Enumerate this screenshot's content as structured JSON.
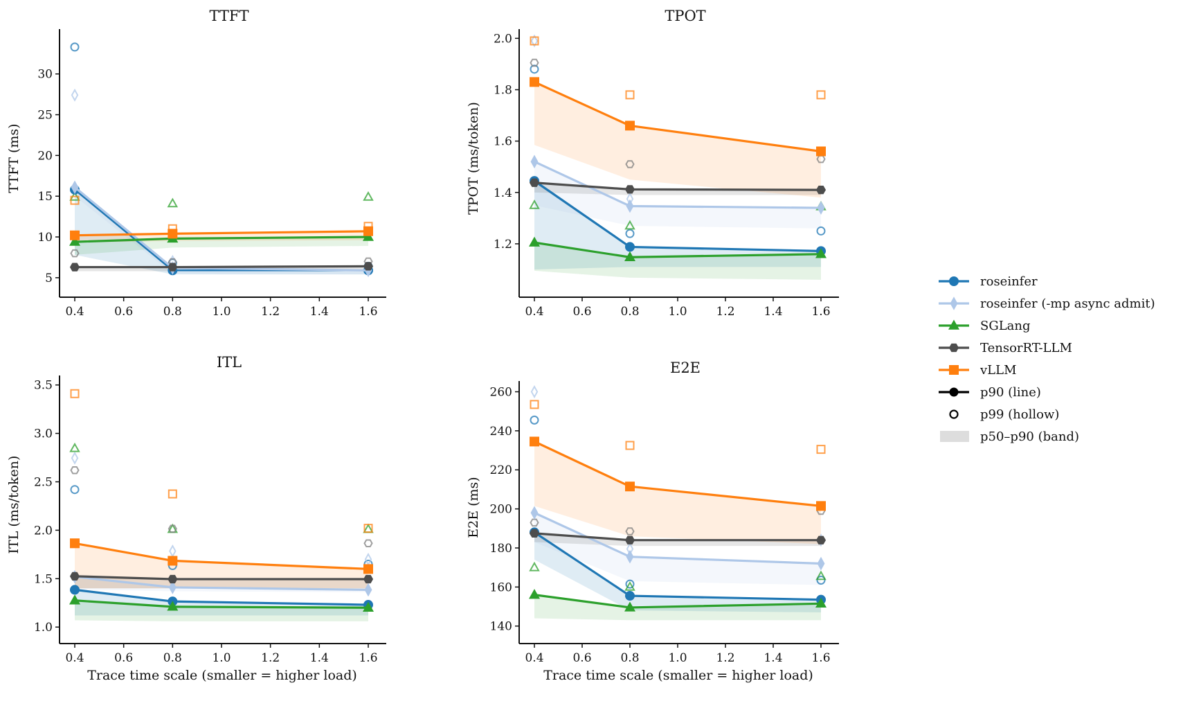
{
  "chart_data": {
    "type": "line",
    "x": [
      0.4,
      0.8,
      1.6
    ],
    "xlabel": "Trace time scale (smaller = higher load)",
    "xticks": [
      "0.4",
      "0.6",
      "0.8",
      "1.0",
      "1.2",
      "1.4",
      "1.6"
    ],
    "xlim": [
      0.34,
      1.67
    ],
    "grid": false,
    "legend_position": "right",
    "series_style": [
      {
        "name": "roseinfer",
        "color": "#1f77b4",
        "marker": "circle"
      },
      {
        "name": "roseinfer (-mp async admit)",
        "color": "#aec7e8",
        "marker": "diamond"
      },
      {
        "name": "SGLang",
        "color": "#2ca02c",
        "marker": "triangle"
      },
      {
        "name": "TensorRT-LLM",
        "color": "#4d4d4d",
        "marker": "hexagon"
      },
      {
        "name": "vLLM",
        "color": "#ff7f0e",
        "marker": "square"
      }
    ],
    "legend": [
      "roseinfer",
      "roseinfer (-mp async admit)",
      "SGLang",
      "TensorRT-LLM",
      "vLLM",
      "p90 (line)",
      "p99 (hollow)",
      "p50–p90 (band)"
    ],
    "panels": [
      {
        "title": "TTFT",
        "ylabel": "TTFT (ms)",
        "ylim": [
          3.8,
          35.5
        ],
        "yticks": [
          "5",
          "10",
          "15",
          "20",
          "25",
          "30"
        ],
        "ytick_values": [
          5,
          10,
          15,
          20,
          25,
          30
        ],
        "show_xticks": true,
        "show_xlabel": false,
        "series": [
          {
            "name": "roseinfer",
            "p90": [
              15.8,
              5.9,
              5.9
            ],
            "p50": [
              7.8,
              5.4,
              5.4
            ],
            "p99": [
              33.3,
              6.8,
              6.4
            ]
          },
          {
            "name": "roseinfer (-mp async admit)",
            "p90": [
              16.1,
              6.2,
              5.9
            ],
            "p50": [
              15.0,
              5.5,
              5.4
            ],
            "p99": [
              27.4,
              7.0,
              6.2
            ]
          },
          {
            "name": "SGLang",
            "p90": [
              9.4,
              9.8,
              10.0
            ],
            "p50": [
              7.8,
              8.7,
              8.9
            ],
            "p99": [
              14.9,
              14.1,
              14.9
            ]
          },
          {
            "name": "TensorRT-LLM",
            "p90": [
              6.3,
              6.3,
              6.4
            ],
            "p50": [
              5.8,
              5.8,
              5.8
            ],
            "p99": [
              8.0,
              6.9,
              7.0
            ]
          },
          {
            "name": "vLLM",
            "p90": [
              10.2,
              10.4,
              10.7
            ],
            "p50": [
              9.3,
              9.5,
              9.6
            ],
            "p99": [
              14.5,
              11.0,
              11.3
            ]
          }
        ]
      },
      {
        "title": "TPOT",
        "ylabel": "TPOT (ms/token)",
        "ylim": [
          1.03,
          2.036
        ],
        "yticks": [
          "1.2",
          "1.4",
          "1.6",
          "1.8",
          "2.0"
        ],
        "ytick_values": [
          1.2,
          1.4,
          1.6,
          1.8,
          2.0
        ],
        "show_xticks": true,
        "show_xlabel": false,
        "series": [
          {
            "name": "roseinfer",
            "p90": [
              1.445,
              1.188,
              1.172
            ],
            "p50": [
              1.1,
              1.11,
              1.11
            ],
            "p99": [
              1.88,
              1.24,
              1.25
            ]
          },
          {
            "name": "roseinfer (-mp async admit)",
            "p90": [
              1.52,
              1.347,
              1.34
            ],
            "p50": [
              1.35,
              1.27,
              1.26
            ],
            "p99": [
              1.99,
              1.375,
              1.34
            ]
          },
          {
            "name": "SGLang",
            "p90": [
              1.205,
              1.148,
              1.16
            ],
            "p50": [
              1.095,
              1.068,
              1.06
            ],
            "p99": [
              1.35,
              1.27,
              1.345
            ]
          },
          {
            "name": "TensorRT-LLM",
            "p90": [
              1.438,
              1.412,
              1.41
            ],
            "p50": [
              1.4,
              1.39,
              1.39
            ],
            "p99": [
              1.905,
              1.51,
              1.53
            ]
          },
          {
            "name": "vLLM",
            "p90": [
              1.83,
              1.66,
              1.56
            ],
            "p50": [
              1.585,
              1.45,
              1.38
            ],
            "p99": [
              1.99,
              1.78,
              1.78
            ]
          }
        ]
      },
      {
        "title": "ITL",
        "ylabel": "ITL (ms/token)",
        "ylim": [
          0.93,
          3.598
        ],
        "yticks": [
          "1.0",
          "1.5",
          "2.0",
          "2.5",
          "3.0",
          "3.5"
        ],
        "ytick_values": [
          1.0,
          1.5,
          2.0,
          2.5,
          3.0,
          3.5
        ],
        "show_xticks": true,
        "show_xlabel": true,
        "series": [
          {
            "name": "roseinfer",
            "p90": [
              1.385,
              1.265,
              1.23
            ],
            "p50": [
              1.12,
              1.12,
              1.12
            ],
            "p99": [
              2.42,
              1.635,
              1.65
            ]
          },
          {
            "name": "roseinfer (-mp async admit)",
            "p90": [
              1.52,
              1.41,
              1.385
            ],
            "p50": [
              1.39,
              1.37,
              1.36
            ],
            "p99": [
              2.745,
              1.785,
              1.7
            ]
          },
          {
            "name": "SGLang",
            "p90": [
              1.275,
              1.21,
              1.2
            ],
            "p50": [
              1.07,
              1.06,
              1.06
            ],
            "p99": [
              2.845,
              2.01,
              2.01
            ]
          },
          {
            "name": "TensorRT-LLM",
            "p90": [
              1.525,
              1.495,
              1.495
            ],
            "p50": [
              1.4,
              1.4,
              1.4
            ],
            "p99": [
              2.62,
              2.015,
              1.865
            ]
          },
          {
            "name": "vLLM",
            "p90": [
              1.865,
              1.685,
              1.6
            ],
            "p50": [
              1.4,
              1.4,
              1.4
            ],
            "p99": [
              3.41,
              2.375,
              2.02
            ]
          }
        ]
      },
      {
        "title": "E2E",
        "ylabel": "E2E (ms)",
        "ylim": [
          136,
          265.5
        ],
        "yticks": [
          "140",
          "160",
          "180",
          "200",
          "220",
          "240",
          "260"
        ],
        "ytick_values": [
          140,
          160,
          180,
          200,
          220,
          240,
          260
        ],
        "show_xticks": true,
        "show_xlabel": true,
        "series": [
          {
            "name": "roseinfer",
            "p90": [
              188,
              155.5,
              153.5
            ],
            "p50": [
              174,
              148,
              147
            ],
            "p99": [
              245.5,
              161.5,
              163.5
            ]
          },
          {
            "name": "roseinfer (-mp async admit)",
            "p90": [
              198,
              175.5,
              172
            ],
            "p50": [
              183,
              163,
              161
            ],
            "p99": [
              260,
              179.5,
              184
            ]
          },
          {
            "name": "SGLang",
            "p90": [
              156,
              149.5,
              151.5
            ],
            "p50": [
              144,
              143,
              143
            ],
            "p99": [
              170,
              160,
              165.5
            ]
          },
          {
            "name": "TensorRT-LLM",
            "p90": [
              187.5,
              184,
              184
            ],
            "p50": [
              183,
              181,
              181
            ],
            "p99": [
              193,
              188.5,
              199
            ]
          },
          {
            "name": "vLLM",
            "p90": [
              234.5,
              211.5,
              201.5
            ],
            "p50": [
              201.5,
              186,
              182
            ],
            "p99": [
              253.5,
              232.5,
              230.5
            ]
          }
        ]
      }
    ]
  }
}
